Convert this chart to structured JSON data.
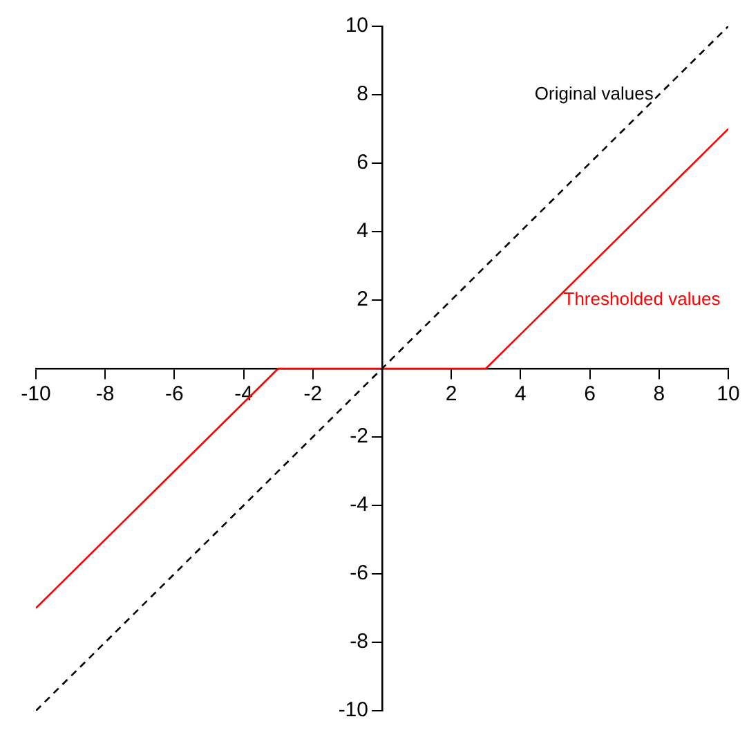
{
  "chart_data": {
    "type": "line",
    "x": [
      -10,
      10
    ],
    "series": [
      {
        "name": "Original values",
        "color": "#000000",
        "values": [
          -10,
          10
        ],
        "line_style": "dashed"
      },
      {
        "name": "Thresholded values",
        "color": "#ff0000",
        "x": [
          -10,
          -3,
          3,
          10
        ],
        "values": [
          -7,
          0,
          0,
          7
        ],
        "line_style": "solid"
      }
    ],
    "xlim": [
      -10,
      10
    ],
    "ylim": [
      -10,
      10
    ],
    "xticks": [
      -10,
      -8,
      -6,
      -4,
      -2,
      2,
      4,
      6,
      8,
      10
    ],
    "yticks": [
      -10,
      -8,
      -6,
      -4,
      -2,
      2,
      4,
      6,
      8,
      10
    ],
    "grid": false,
    "legend": false,
    "marker": "none"
  }
}
